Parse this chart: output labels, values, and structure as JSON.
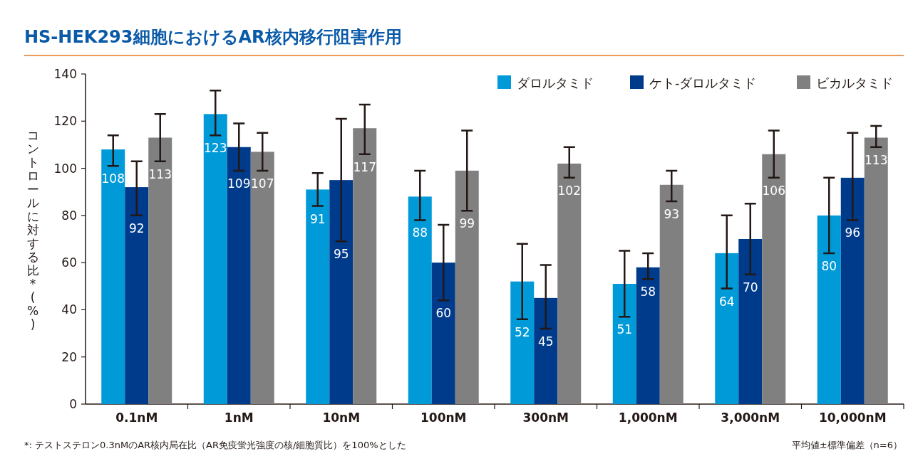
{
  "chart_data": {
    "type": "bar",
    "title": "HS-HEK293細胞におけるAR核内移行阻害作用",
    "ylabel": "コントロールに対する比*(%)",
    "categories": [
      "0.1nM",
      "1nM",
      "10nM",
      "100nM",
      "300nM",
      "1,000nM",
      "3,000nM",
      "10,000nM"
    ],
    "series": [
      {
        "name": "ダロルタミド",
        "color": "#009ad8",
        "values": [
          108,
          123,
          91,
          88,
          52,
          51,
          64,
          80
        ],
        "errors": [
          [
            101,
            114
          ],
          [
            114,
            133
          ],
          [
            84,
            98
          ],
          [
            78,
            99
          ],
          [
            36,
            68
          ],
          [
            37,
            65
          ],
          [
            49,
            80
          ],
          [
            64,
            96
          ]
        ]
      },
      {
        "name": "ケト-ダロルタミド",
        "color": "#003a8a",
        "values": [
          92,
          109,
          95,
          60,
          45,
          58,
          70,
          96
        ],
        "errors": [
          [
            80,
            103
          ],
          [
            99,
            119
          ],
          [
            69,
            121
          ],
          [
            44,
            76
          ],
          [
            32,
            59
          ],
          [
            53,
            64
          ],
          [
            55,
            85
          ],
          [
            78,
            115
          ]
        ]
      },
      {
        "name": "ビカルタミド",
        "color": "#808080",
        "values": [
          113,
          107,
          117,
          99,
          102,
          93,
          106,
          113
        ],
        "errors": [
          [
            103,
            123
          ],
          [
            99,
            115
          ],
          [
            106,
            127
          ],
          [
            82,
            116
          ],
          [
            96,
            109
          ],
          [
            86,
            99
          ],
          [
            96,
            116
          ],
          [
            109,
            118
          ]
        ]
      }
    ],
    "ylim": [
      0,
      140
    ],
    "yticks": [
      0,
      20,
      40,
      60,
      80,
      100,
      120,
      140
    ],
    "data_labels": true,
    "grid": false,
    "legend": "top right",
    "annotations": [
      "*: テストステロン0.3nMのAR核内局在比（AR免疫蛍光強度の核/細胞質比）を100%とした",
      "平均値±標準偏差（n=6）"
    ]
  }
}
